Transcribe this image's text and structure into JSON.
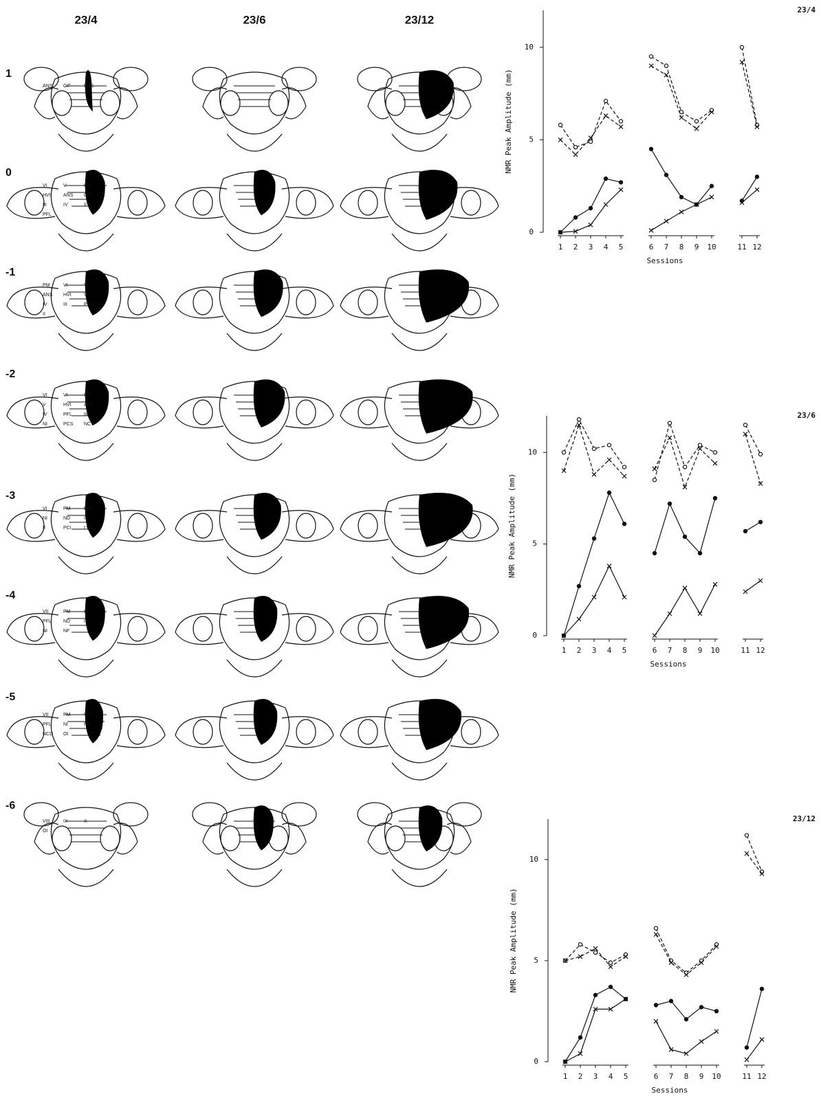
{
  "figure": {
    "columns": [
      "23/4",
      "23/6",
      "23/12"
    ],
    "rows": [
      {
        "label": "1",
        "annotations": [
          "ANS",
          "CIF",
          "PCS"
        ]
      },
      {
        "label": "0",
        "annotations": [
          "VI",
          "V",
          "PM",
          "HVI",
          "ANS",
          "CIF",
          "III",
          "IV",
          "II",
          "PFL"
        ]
      },
      {
        "label": "-1",
        "annotations": [
          "PM",
          "VI",
          "VI",
          "ANS",
          "HVI",
          "V",
          "IV",
          "III",
          "PCM",
          "II"
        ]
      },
      {
        "label": "-2",
        "annotations": [
          "VI",
          "VI",
          "PM",
          "V",
          "HVI",
          "ANS",
          "IV",
          "PFL",
          "III",
          "NI",
          "PCS",
          "NCV"
        ]
      },
      {
        "label": "-3",
        "annotations": [
          "VI",
          "PM",
          "PFL",
          "NI",
          "ND",
          "IV",
          "II",
          "PCI",
          "LVN"
        ]
      },
      {
        "label": "-4",
        "annotations": [
          "VII",
          "PM",
          "IV",
          "PFL",
          "ND",
          "II",
          "NI",
          "NF"
        ]
      },
      {
        "label": "-5",
        "annotations": [
          "VII",
          "PM",
          "VIII",
          "PFL",
          "NI",
          "NF",
          "NCD",
          "OI"
        ]
      },
      {
        "label": "-6",
        "annotations": [
          "VIII",
          "IX",
          "X",
          "OI"
        ]
      }
    ]
  },
  "chart_data": [
    {
      "type": "line",
      "title": "23/4",
      "y_label": "NMR Peak Amplitude (mm)",
      "x_label": "Sessions",
      "categories": [
        "1",
        "2",
        "3",
        "4",
        "5",
        null,
        "6",
        "7",
        "8",
        "9",
        "10",
        null,
        "11",
        "12"
      ],
      "ylim": [
        0,
        12
      ],
      "yticks": [
        0,
        5,
        10
      ],
      "series": [
        {
          "color": "#111111",
          "dashed": false,
          "marker": "dot",
          "values": [
            0,
            0.8,
            1.3,
            2.9,
            2.7,
            null,
            4.5,
            3.1,
            1.9,
            1.5,
            2.5,
            null,
            1.7,
            3.0
          ]
        },
        {
          "color": "#111111",
          "dashed": false,
          "marker": "x",
          "values": [
            0,
            0.05,
            0.4,
            1.5,
            2.3,
            null,
            0.1,
            0.6,
            1.1,
            1.5,
            1.9,
            null,
            1.6,
            2.3
          ]
        },
        {
          "color": "#111111",
          "dashed": true,
          "marker": "circle",
          "values": [
            5.8,
            4.6,
            4.9,
            7.1,
            6.0,
            null,
            9.5,
            9.0,
            6.5,
            6.0,
            6.6,
            null,
            10.0,
            5.8
          ]
        },
        {
          "color": "#111111",
          "dashed": true,
          "marker": "x",
          "values": [
            5.0,
            4.2,
            5.1,
            6.3,
            5.7,
            null,
            9.0,
            8.5,
            6.2,
            5.6,
            6.5,
            null,
            9.2,
            5.7
          ]
        }
      ]
    },
    {
      "type": "line",
      "title": "23/6",
      "y_label": "NMR Peak Amplitude (mm)",
      "x_label": "Sessions",
      "categories": [
        "1",
        "2",
        "3",
        "4",
        "5",
        null,
        "6",
        "7",
        "8",
        "9",
        "10",
        null,
        "11",
        "12"
      ],
      "ylim": [
        0,
        12
      ],
      "yticks": [
        0,
        5,
        10
      ],
      "series": [
        {
          "color": "#111111",
          "dashed": false,
          "marker": "dot",
          "values": [
            0,
            2.7,
            5.3,
            7.8,
            6.1,
            null,
            4.5,
            7.2,
            5.4,
            4.5,
            7.5,
            null,
            5.7,
            6.2
          ]
        },
        {
          "color": "#111111",
          "dashed": false,
          "marker": "x",
          "values": [
            0,
            0.9,
            2.1,
            3.8,
            2.1,
            null,
            0,
            1.2,
            2.6,
            1.2,
            2.8,
            null,
            2.4,
            3.0
          ]
        },
        {
          "color": "#111111",
          "dashed": true,
          "marker": "circle",
          "values": [
            10.0,
            11.8,
            10.2,
            10.4,
            9.2,
            null,
            8.5,
            11.6,
            9.2,
            10.4,
            10.0,
            null,
            11.5,
            9.9
          ]
        },
        {
          "color": "#111111",
          "dashed": true,
          "marker": "x",
          "values": [
            9.0,
            11.5,
            8.8,
            9.6,
            8.7,
            null,
            9.1,
            10.8,
            8.1,
            10.2,
            9.4,
            null,
            11.0,
            8.3
          ]
        }
      ]
    },
    {
      "type": "line",
      "title": "23/12",
      "y_label": "NMR Peak Amplitude (mm)",
      "x_label": "Sessions",
      "categories": [
        "1",
        "2",
        "3",
        "4",
        "5",
        null,
        "6",
        "7",
        "8",
        "9",
        "10",
        null,
        "11",
        "12"
      ],
      "ylim": [
        0,
        12
      ],
      "yticks": [
        0,
        5,
        10
      ],
      "series": [
        {
          "color": "#111111",
          "dashed": false,
          "marker": "dot",
          "values": [
            0,
            1.2,
            3.3,
            3.7,
            3.1,
            null,
            2.8,
            3.0,
            2.1,
            2.7,
            2.5,
            null,
            0.7,
            3.6
          ]
        },
        {
          "color": "#111111",
          "dashed": false,
          "marker": "x",
          "values": [
            0,
            0.4,
            2.6,
            2.6,
            3.1,
            null,
            2.0,
            0.6,
            0.4,
            1.0,
            1.5,
            null,
            0.1,
            1.1
          ]
        },
        {
          "color": "#111111",
          "dashed": true,
          "marker": "circle",
          "values": [
            5.0,
            5.8,
            5.4,
            4.9,
            5.3,
            null,
            6.6,
            5.0,
            4.4,
            5.0,
            5.8,
            null,
            11.2,
            9.4
          ]
        },
        {
          "color": "#111111",
          "dashed": true,
          "marker": "x",
          "values": [
            5.0,
            5.2,
            5.6,
            4.7,
            5.2,
            null,
            6.3,
            4.9,
            4.3,
            4.9,
            5.7,
            null,
            10.3,
            9.3
          ]
        }
      ]
    }
  ]
}
